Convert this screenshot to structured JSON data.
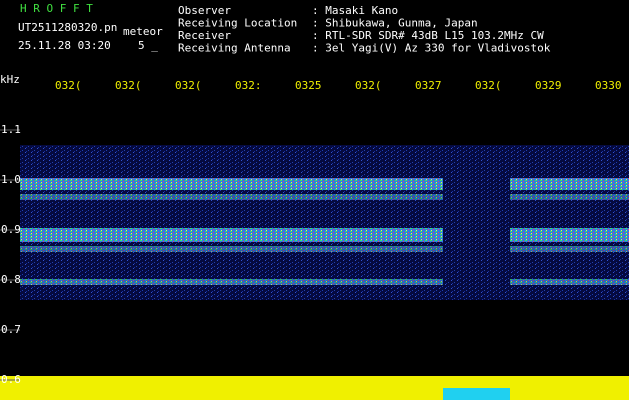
{
  "header": {
    "app": "H R O F F T",
    "file": "UT2511280320.pn",
    "kind": "meteor",
    "datetime": "25.11.28 03:20",
    "count": "5 _",
    "fields": [
      {
        "label": "Observer",
        "value": ": Masaki Kano"
      },
      {
        "label": "Receiving Location",
        "value": ": Shibukawa, Gunma, Japan"
      },
      {
        "label": "Receiver",
        "value": ": RTL-SDR SDR# 43dB L15 103.2MHz CW"
      },
      {
        "label": "Receiving Antenna",
        "value": ": 3el Yagi(V) Az 330 for Vladivostok"
      }
    ]
  },
  "chart_data": {
    "type": "spectrogram",
    "ylabel": "kHz",
    "categories": [
      "032(",
      "032(",
      "032(",
      "032:",
      "0325",
      "032(",
      "0327",
      "032(",
      "0329",
      "0330"
    ],
    "ylim": [
      0.56,
      1.166
    ],
    "yticks": [
      0.6,
      0.7,
      0.8,
      0.9,
      {
        "value": 1.0,
        "label": "1.0"
      },
      1.1
    ]
  }
}
